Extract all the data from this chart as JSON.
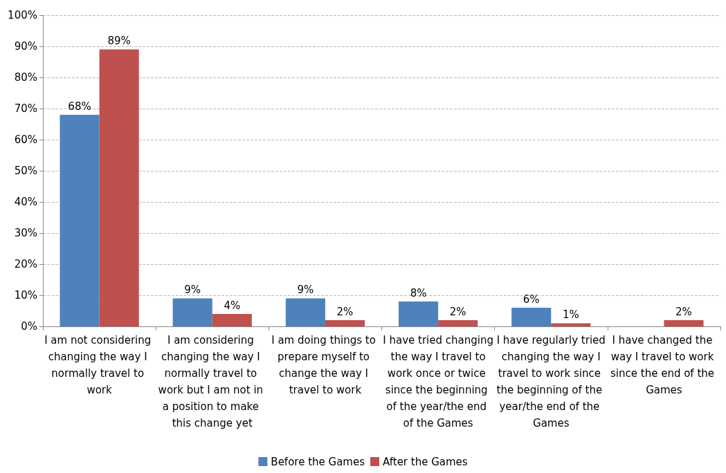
{
  "chart_data": {
    "type": "bar",
    "categories": [
      "I am not considering changing the way I normally travel to work",
      "I am considering changing the way I normally travel to work but I am not in a position to make this change yet",
      "I am doing things to prepare myself to change the way I travel to work",
      "I have tried changing the way I travel to work once or twice since the beginning of the year/the end of the Games",
      "I have regularly tried changing the way I travel to work since the beginning of the year/the end of the Games",
      "I have changed the way I travel to work since the end of the Games"
    ],
    "series": [
      {
        "name": "Before the Games",
        "color": "#4f81bd",
        "values": [
          68,
          9,
          9,
          8,
          6,
          null
        ],
        "value_labels": [
          "68%",
          "9%",
          "9%",
          "8%",
          "6%",
          null
        ]
      },
      {
        "name": "After the Games",
        "color": "#c0504d",
        "values": [
          89,
          4,
          2,
          2,
          1,
          2
        ],
        "value_labels": [
          "89%",
          "4%",
          "2%",
          "2%",
          "1%",
          "2%"
        ]
      }
    ],
    "ylim": [
      0,
      100
    ],
    "yticks": [
      {
        "value": 0,
        "label": "0%"
      },
      {
        "value": 10,
        "label": "10%"
      },
      {
        "value": 20,
        "label": "20%"
      },
      {
        "value": 30,
        "label": "30%"
      },
      {
        "value": 40,
        "label": "40%"
      },
      {
        "value": 50,
        "label": "50%"
      },
      {
        "value": 60,
        "label": "60%"
      },
      {
        "value": 70,
        "label": "70%"
      },
      {
        "value": 80,
        "label": "80%"
      },
      {
        "value": 90,
        "label": "90%"
      },
      {
        "value": 100,
        "label": "100%"
      }
    ],
    "grid": "y",
    "legend": "bottom"
  }
}
